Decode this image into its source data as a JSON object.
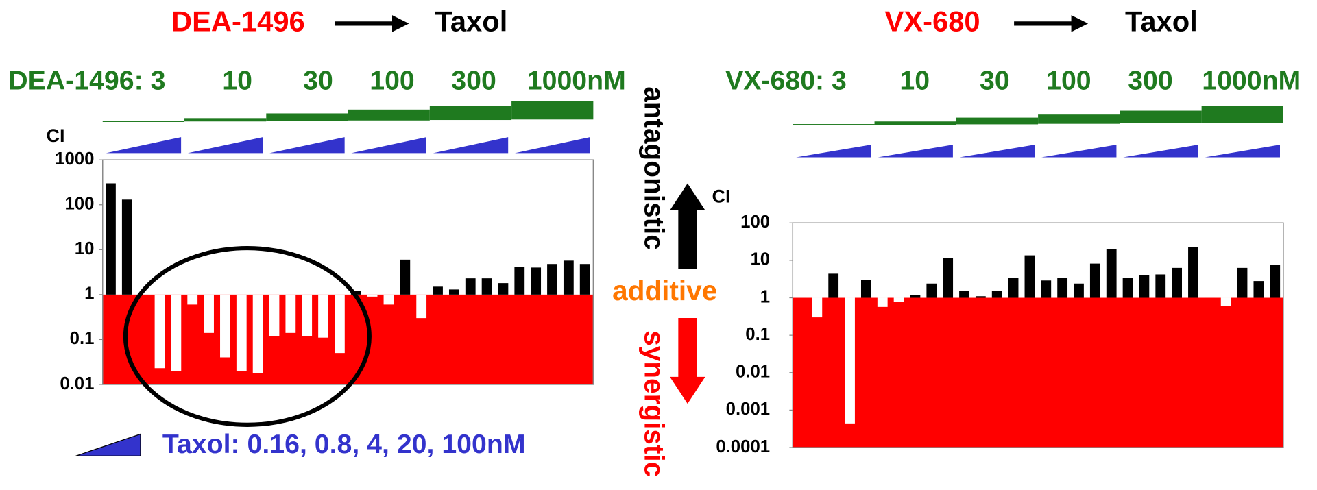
{
  "chart_data": [
    {
      "type": "bar",
      "drug": "DEA-1496",
      "partner": "Taxol",
      "y_label": "CI",
      "log_scale": true,
      "dose_labels": [
        "DEA-1496: 3",
        "10",
        "30",
        "100",
        "300",
        "1000nM"
      ],
      "ylim": [
        0.01,
        1000
      ],
      "yticks": [
        0.01,
        0.1,
        1,
        10,
        100,
        1000
      ],
      "baseline": 1,
      "above_color": "#000000",
      "below_color": "#ffffff",
      "background_color": "#ff0000",
      "values": [
        300,
        130,
        1,
        0.023,
        0.02,
        0.6,
        0.14,
        0.04,
        0.02,
        0.018,
        0.12,
        0.14,
        0.12,
        0.11,
        0.05,
        1.2,
        0.9,
        0.6,
        6,
        0.3,
        1.5,
        1.3,
        2.3,
        2.3,
        1.8,
        4.2,
        4,
        4.8,
        5.7,
        4.8
      ]
    },
    {
      "type": "bar",
      "drug": "VX-680",
      "partner": "Taxol",
      "y_label": "CI",
      "log_scale": true,
      "dose_labels": [
        "VX-680: 3",
        "10",
        "30",
        "100",
        "300",
        "1000nM"
      ],
      "ylim": [
        0.0001,
        100
      ],
      "yticks": [
        0.0001,
        0.001,
        0.01,
        0.1,
        1,
        10,
        100
      ],
      "baseline": 1,
      "above_color": "#000000",
      "below_color": "#ffffff",
      "background_color": "#ff0000",
      "values": [
        1,
        0.3,
        4.4,
        0.00044,
        3,
        0.57,
        0.77,
        1.2,
        2.4,
        11.6,
        1.5,
        1.1,
        1.5,
        3.4,
        13.6,
        2.9,
        3.4,
        2.4,
        8.2,
        20,
        3.4,
        4,
        4.2,
        6.3,
        22.6,
        1,
        0.6,
        6.3,
        2.8,
        7.7
      ]
    }
  ],
  "annotations": {
    "antagonistic": "antagonistic",
    "additive": "additive",
    "synergistic": "synergistic",
    "ci": "CI"
  },
  "taxol_legend": "Taxol: 0.16, 0.8, 4, 20, 100nM"
}
